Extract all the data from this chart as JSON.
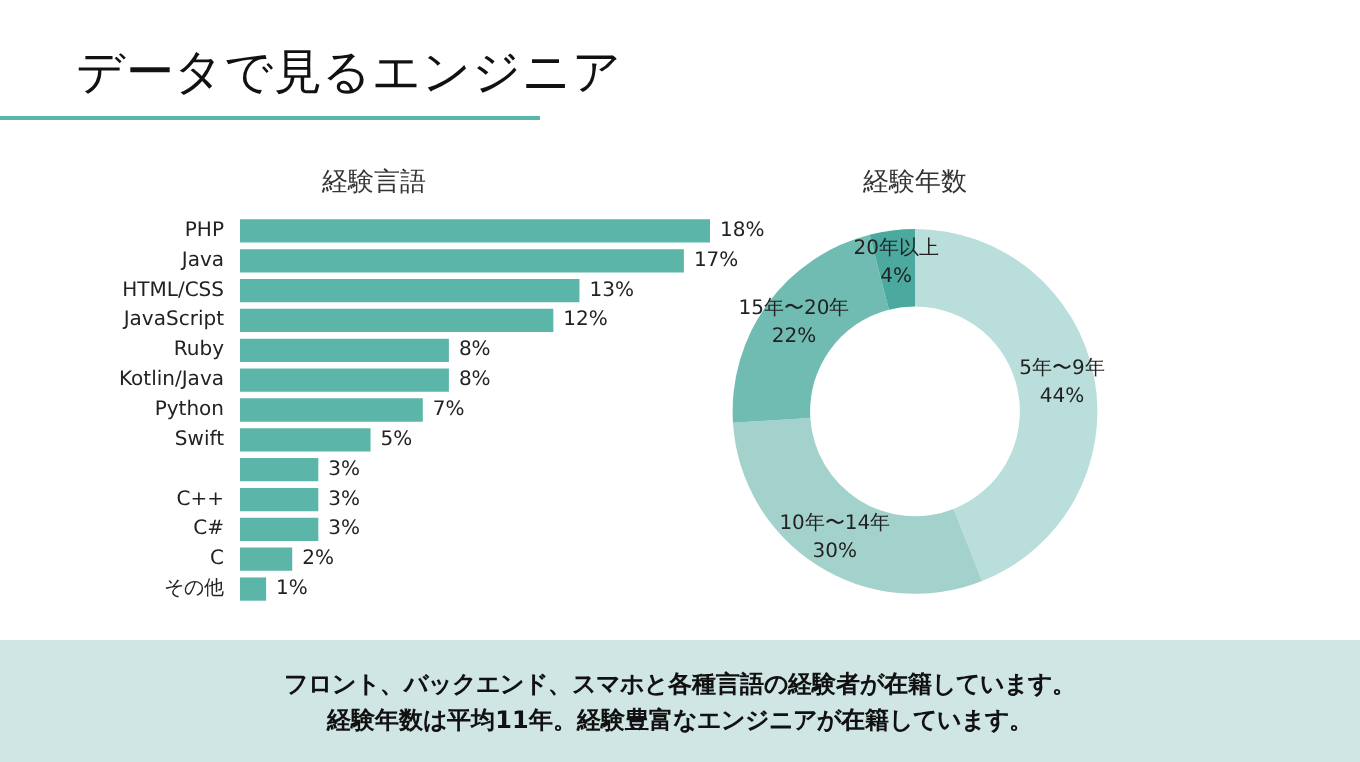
{
  "chart_data": [
    {
      "type": "other",
      "title": "データで見るエンジニア",
      "annotations": [
        "フロント、バックエンド、スマホと各種言語の経験者が在籍しています。",
        "経験年数は平均11年。経験豊富なエンジニアが在籍しています。"
      ]
    },
    {
      "type": "bar",
      "title": "経験言語",
      "orientation": "horizontal",
      "categories": [
        "PHP",
        "Java",
        "HTML/CSS",
        "JavaScript",
        "Ruby",
        "Kotlin/Java",
        "Python",
        "Swift",
        null,
        "C++",
        "C#",
        "C",
        "その他"
      ],
      "values": [
        18,
        17,
        13,
        12,
        8,
        8,
        7,
        5,
        3,
        3,
        3,
        2,
        1
      ],
      "value_labels": [
        "18%",
        "17%",
        "13%",
        "12%",
        "8%",
        "8%",
        "7%",
        "5%",
        "3%",
        "3%",
        "3%",
        "2%",
        "1%"
      ],
      "color": "#5cb5a9"
    },
    {
      "type": "donut",
      "title": "経験年数",
      "categories": [
        "5年〜9年",
        "10年〜14年",
        "15年〜20年",
        "20年以上"
      ],
      "values": [
        44,
        30,
        22,
        4
      ],
      "value_labels": [
        "44%",
        "30%",
        "22%",
        "4%"
      ],
      "colors": [
        "#b9dedb",
        "#a3d2cd",
        "#70bcb3",
        "#4ba99f"
      ]
    }
  ]
}
